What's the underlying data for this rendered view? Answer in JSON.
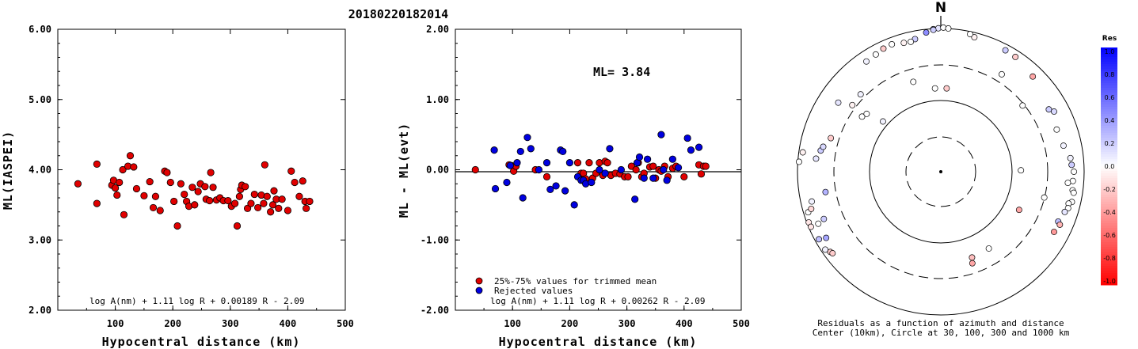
{
  "title": "20180220182014",
  "chart_data": [
    {
      "type": "scatter",
      "name": "left-panel",
      "xlabel": "Hypocentral distance (km)",
      "ylabel": "ML(IASPEI)",
      "xlim": [
        0,
        500
      ],
      "ylim": [
        2.0,
        6.0
      ],
      "x_ticks": [
        "100",
        "200",
        "300",
        "400",
        "500"
      ],
      "y_ticks": [
        "2.00",
        "3.00",
        "4.00",
        "5.00",
        "6.00"
      ],
      "annotation": "log A(nm) + 1.11 log R + 0.00189 R - 2.09",
      "marker_color": "#e00000",
      "points": [
        [
          35,
          3.8
        ],
        [
          68,
          4.08
        ],
        [
          68,
          3.52
        ],
        [
          94,
          3.78
        ],
        [
          97,
          3.85
        ],
        [
          100,
          3.74
        ],
        [
          103,
          3.64
        ],
        [
          107,
          3.82
        ],
        [
          113,
          4.0
        ],
        [
          115,
          3.36
        ],
        [
          122,
          4.05
        ],
        [
          126,
          4.2
        ],
        [
          132,
          4.04
        ],
        [
          137,
          3.73
        ],
        [
          150,
          3.63
        ],
        [
          160,
          3.83
        ],
        [
          166,
          3.46
        ],
        [
          170,
          3.62
        ],
        [
          178,
          3.42
        ],
        [
          186,
          3.98
        ],
        [
          190,
          3.96
        ],
        [
          196,
          3.82
        ],
        [
          202,
          3.55
        ],
        [
          208,
          3.2
        ],
        [
          214,
          3.8
        ],
        [
          220,
          3.65
        ],
        [
          224,
          3.55
        ],
        [
          228,
          3.48
        ],
        [
          234,
          3.75
        ],
        [
          238,
          3.5
        ],
        [
          244,
          3.69
        ],
        [
          248,
          3.8
        ],
        [
          256,
          3.76
        ],
        [
          258,
          3.58
        ],
        [
          264,
          3.56
        ],
        [
          266,
          3.96
        ],
        [
          270,
          3.75
        ],
        [
          276,
          3.57
        ],
        [
          282,
          3.6
        ],
        [
          288,
          3.56
        ],
        [
          296,
          3.56
        ],
        [
          302,
          3.48
        ],
        [
          308,
          3.52
        ],
        [
          312,
          3.2
        ],
        [
          316,
          3.62
        ],
        [
          318,
          3.72
        ],
        [
          320,
          3.78
        ],
        [
          326,
          3.76
        ],
        [
          330,
          3.45
        ],
        [
          336,
          3.52
        ],
        [
          342,
          3.65
        ],
        [
          348,
          3.46
        ],
        [
          354,
          3.64
        ],
        [
          358,
          3.52
        ],
        [
          360,
          4.07
        ],
        [
          364,
          3.62
        ],
        [
          370,
          3.4
        ],
        [
          374,
          3.5
        ],
        [
          376,
          3.7
        ],
        [
          380,
          3.58
        ],
        [
          384,
          3.45
        ],
        [
          390,
          3.58
        ],
        [
          400,
          3.42
        ],
        [
          406,
          3.98
        ],
        [
          412,
          3.82
        ],
        [
          420,
          3.62
        ],
        [
          426,
          3.84
        ],
        [
          430,
          3.55
        ],
        [
          432,
          3.45
        ],
        [
          438,
          3.55
        ]
      ]
    },
    {
      "type": "scatter",
      "name": "right-panel",
      "xlabel": "Hypocentral distance (km)",
      "ylabel": "ML - ML(evt)",
      "xlim": [
        0,
        500
      ],
      "ylim": [
        -2.0,
        2.0
      ],
      "x_ticks": [
        "100",
        "200",
        "300",
        "400",
        "500"
      ],
      "y_ticks": [
        "-2.00",
        "-1.00",
        "0.00",
        "1.00",
        "2.00"
      ],
      "ml_label": "ML= 3.84",
      "annotation": "log A(nm) + 1.11 log R + 0.00262 R - 2.09",
      "legend": [
        {
          "label": "25%-75% values for trimmed mean",
          "color": "#e00000"
        },
        {
          "label": "Rejected values",
          "color": "#0000e0"
        }
      ],
      "series": [
        {
          "name": "25%-75% values for trimmed mean",
          "color": "#e00000",
          "points": [
            [
              35,
              0.0
            ],
            [
              94,
              0.07
            ],
            [
              98,
              0.06
            ],
            [
              102,
              -0.02
            ],
            [
              106,
              0.05
            ],
            [
              140,
              0.0
            ],
            [
              160,
              -0.1
            ],
            [
              214,
              0.1
            ],
            [
              220,
              -0.05
            ],
            [
              224,
              -0.05
            ],
            [
              228,
              -0.13
            ],
            [
              234,
              0.1
            ],
            [
              240,
              -0.12
            ],
            [
              246,
              -0.05
            ],
            [
              252,
              0.1
            ],
            [
              258,
              -0.08
            ],
            [
              262,
              0.12
            ],
            [
              266,
              0.1
            ],
            [
              272,
              -0.08
            ],
            [
              280,
              -0.05
            ],
            [
              288,
              -0.06
            ],
            [
              296,
              -0.1
            ],
            [
              302,
              -0.1
            ],
            [
              308,
              0.05
            ],
            [
              316,
              0.0
            ],
            [
              320,
              0.1
            ],
            [
              326,
              -0.1
            ],
            [
              330,
              -0.05
            ],
            [
              340,
              0.04
            ],
            [
              346,
              0.05
            ],
            [
              350,
              -0.12
            ],
            [
              356,
              0.0
            ],
            [
              360,
              -0.02
            ],
            [
              366,
              0.05
            ],
            [
              372,
              -0.1
            ],
            [
              380,
              0.02
            ],
            [
              386,
              0.05
            ],
            [
              400,
              -0.1
            ],
            [
              426,
              0.07
            ],
            [
              430,
              -0.06
            ],
            [
              434,
              0.05
            ],
            [
              438,
              0.05
            ]
          ]
        },
        {
          "name": "Rejected values",
          "color": "#0000e0",
          "points": [
            [
              68,
              0.28
            ],
            [
              70,
              -0.27
            ],
            [
              90,
              -0.18
            ],
            [
              96,
              0.06
            ],
            [
              108,
              0.1
            ],
            [
              114,
              0.26
            ],
            [
              118,
              -0.4
            ],
            [
              126,
              0.46
            ],
            [
              132,
              0.3
            ],
            [
              146,
              0.0
            ],
            [
              160,
              0.1
            ],
            [
              166,
              -0.28
            ],
            [
              176,
              -0.23
            ],
            [
              184,
              0.28
            ],
            [
              188,
              0.26
            ],
            [
              192,
              -0.3
            ],
            [
              200,
              0.1
            ],
            [
              208,
              -0.5
            ],
            [
              214,
              -0.1
            ],
            [
              220,
              -0.15
            ],
            [
              224,
              -0.15
            ],
            [
              228,
              -0.2
            ],
            [
              238,
              -0.18
            ],
            [
              252,
              0.0
            ],
            [
              262,
              -0.05
            ],
            [
              270,
              0.3
            ],
            [
              290,
              0.0
            ],
            [
              314,
              -0.42
            ],
            [
              318,
              0.1
            ],
            [
              322,
              0.18
            ],
            [
              330,
              -0.12
            ],
            [
              336,
              0.15
            ],
            [
              346,
              -0.12
            ],
            [
              360,
              0.5
            ],
            [
              364,
              0.0
            ],
            [
              370,
              -0.15
            ],
            [
              380,
              0.15
            ],
            [
              390,
              0.03
            ],
            [
              406,
              0.45
            ],
            [
              412,
              0.28
            ],
            [
              426,
              0.32
            ]
          ]
        }
      ]
    },
    {
      "type": "polar-scatter",
      "name": "residual-map",
      "north_label": "N",
      "caption_line1": "Residuals as a function of azimuth and distance",
      "caption_line2": "Center (10km), Circle at 30, 100, 300 and 1000 km",
      "rings_km": [
        30,
        100,
        300,
        1000
      ],
      "colorbar_title": "Res",
      "colorbar_ticks": [
        "1.0",
        "0.8",
        "0.6",
        "0.4",
        "0.2",
        "0.0",
        "-0.2",
        "-0.4",
        "-0.6",
        "-0.8",
        "-1.0"
      ],
      "colorbar_range": [
        -1.0,
        1.0
      ],
      "stations_azimuth_distance_residual": [
        [
          357,
          410,
          0.05
        ],
        [
          359,
          412,
          0.1
        ],
        [
          1,
          414,
          0.0
        ],
        [
          3,
          412,
          0.0
        ],
        [
          -3,
          408,
          0.2
        ],
        [
          -6,
          402,
          0.45
        ],
        [
          -11,
          388,
          0.2
        ],
        [
          -13,
          383,
          0.0
        ],
        [
          -16,
          385,
          -0.05
        ],
        [
          -21,
          392,
          0.0
        ],
        [
          -25,
          390,
          -0.2
        ],
        [
          -29,
          385,
          0.0
        ],
        [
          -34,
          382,
          0.05
        ],
        [
          14,
          398,
          -0.05
        ],
        [
          12,
          404,
          0.0
        ],
        [
          28,
          395,
          0.2
        ],
        [
          33,
          393,
          -0.2
        ],
        [
          44,
          380,
          -0.35
        ],
        [
          32,
          330,
          0.0
        ],
        [
          -46,
          320,
          0.05
        ],
        [
          -17,
          270,
          0.0
        ],
        [
          -4,
          240,
          0.0
        ],
        [
          4,
          240,
          -0.2
        ],
        [
          -53,
          318,
          -0.05
        ],
        [
          -56,
          355,
          0.1
        ],
        [
          -49,
          220,
          0.05
        ],
        [
          51,
          302,
          0.0
        ],
        [
          60,
          358,
          0.2
        ],
        [
          62,
          368,
          0.15
        ],
        [
          70,
          354,
          0.0
        ],
        [
          78,
          360,
          0.05
        ],
        [
          84,
          374,
          0.05
        ],
        [
          90,
          382,
          0.0
        ],
        [
          87,
          376,
          0.2
        ],
        [
          94,
          380,
          0.0
        ],
        [
          98,
          382,
          0.0
        ],
        [
          99,
          386,
          0.0
        ],
        [
          103,
          386,
          0.0
        ],
        [
          104,
          378,
          0.0
        ],
        [
          106,
          380,
          0.0
        ],
        [
          108,
          374,
          0.1
        ],
        [
          95,
          366,
          0.0
        ],
        [
          113,
          366,
          0.25
        ],
        [
          114,
          374,
          -0.3
        ],
        [
          118,
          368,
          -0.4
        ],
        [
          89,
          230,
          0.0
        ],
        [
          116,
          250,
          -0.35
        ],
        [
          104,
          306,
          0.0
        ],
        [
          148,
          260,
          0.0
        ],
        [
          160,
          262,
          -0.25
        ],
        [
          -86,
          408,
          0.0
        ],
        [
          -84,
          360,
          0.1
        ],
        [
          -82,
          400,
          -0.05
        ],
        [
          -80,
          350,
          0.2
        ],
        [
          -78,
          345,
          0.15
        ],
        [
          -103,
          380,
          0.05
        ],
        [
          -112,
          362,
          0.2
        ],
        [
          -100,
          336,
          0.3
        ],
        [
          -107,
          398,
          0.0
        ],
        [
          -111,
          406,
          -0.1
        ],
        [
          -106,
          387,
          -0.15
        ],
        [
          -113,
          382,
          0.0
        ],
        [
          -113,
          405,
          -0.1
        ],
        [
          -120,
          380,
          0.35
        ],
        [
          -126,
          392,
          -0.2
        ],
        [
          -127,
          389,
          -0.2
        ],
        [
          -124,
          400,
          0.05
        ],
        [
          -119,
          400,
          0.25
        ],
        [
          -73,
          330,
          -0.2
        ],
        [
          -55,
          276,
          0.0
        ],
        [
          -52,
          270,
          0.0
        ],
        [
          161,
          278,
          -0.35
        ]
      ]
    }
  ]
}
